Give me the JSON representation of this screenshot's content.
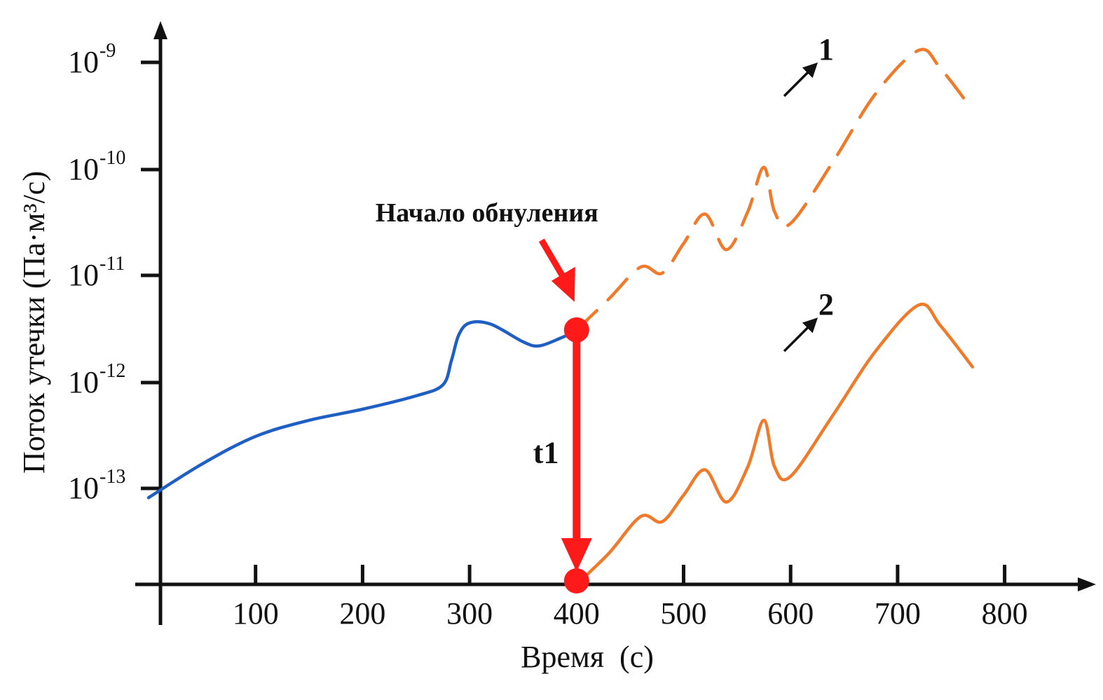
{
  "chart_data": {
    "type": "line",
    "title": "",
    "xlabel": "Время  (с)",
    "ylabel": "Поток утечки (Па·м³/с)",
    "y_scale": "log",
    "xlim": [
      0,
      900
    ],
    "x_ticks": [
      100,
      200,
      300,
      400,
      500,
      600,
      700,
      800
    ],
    "x_tick_labels": [
      "100",
      "200",
      "300",
      "400",
      "500",
      "600",
      "700",
      "800"
    ],
    "y_ticks": [
      {
        "value": 1e-13,
        "base": "10",
        "exp": "-13"
      },
      {
        "value": 1e-12,
        "base": "10",
        "exp": "-12"
      },
      {
        "value": 1e-11,
        "base": "10",
        "exp": "-11"
      },
      {
        "value": 1e-10,
        "base": "10",
        "exp": "-10"
      },
      {
        "value": 1e-09,
        "base": "10",
        "exp": "-9"
      }
    ],
    "colors": {
      "before": "#1f5fc4",
      "after": "#f07a2a",
      "annotation": "#ff1a1a",
      "axis": "#111111"
    },
    "series": [
      {
        "style": "solid",
        "color": "#1f5fc4",
        "x": [
          0,
          50,
          100,
          150,
          200,
          250,
          275,
          283,
          290,
          300,
          320,
          350,
          365,
          385,
          395
        ],
        "y": [
          8e-14,
          1.7e-13,
          3.1e-13,
          4.4e-13,
          5.6e-13,
          7.5e-13,
          9.5e-13,
          1.6e-12,
          2.8e-12,
          3.6e-12,
          3.5e-12,
          2.4e-12,
          2.2e-12,
          2.6e-12,
          2.9e-12
        ]
      },
      {
        "label": "1",
        "style": "dashed",
        "color": "#f07a2a",
        "x": [
          400,
          430,
          460,
          480,
          500,
          520,
          540,
          560,
          575,
          585,
          600,
          640,
          680,
          720,
          740,
          770
        ],
        "y": [
          3.1e-12,
          6e-12,
          1.2e-11,
          1.05e-11,
          2e-11,
          3.8e-11,
          1.75e-11,
          4e-11,
          1.05e-10,
          4e-11,
          3.1e-11,
          1.2e-10,
          5.2e-10,
          1.3e-09,
          8.8e-10,
          3.6e-10
        ]
      },
      {
        "label": "2",
        "style": "solid",
        "color": "#f07a2a",
        "x": [
          400,
          430,
          460,
          480,
          500,
          520,
          540,
          560,
          575,
          585,
          600,
          640,
          680,
          720,
          740,
          770
        ],
        "y": [
          1e-14,
          2.1e-14,
          5.1e-14,
          4.5e-14,
          8.5e-14,
          1.5e-13,
          7.2e-14,
          1.6e-13,
          4.4e-13,
          1.6e-13,
          1.3e-13,
          5e-13,
          2e-12,
          5.3e-12,
          3.4e-12,
          1.4e-12
        ]
      }
    ],
    "annotations": [
      {
        "id": "start",
        "text": "Начало обнуления",
        "x": 400,
        "y": 3.1e-12
      },
      {
        "id": "t1",
        "text": "t1",
        "x": 400,
        "y_from": 3.1e-12,
        "y_to": 1e-14
      }
    ],
    "origin_y": 1e-14
  }
}
